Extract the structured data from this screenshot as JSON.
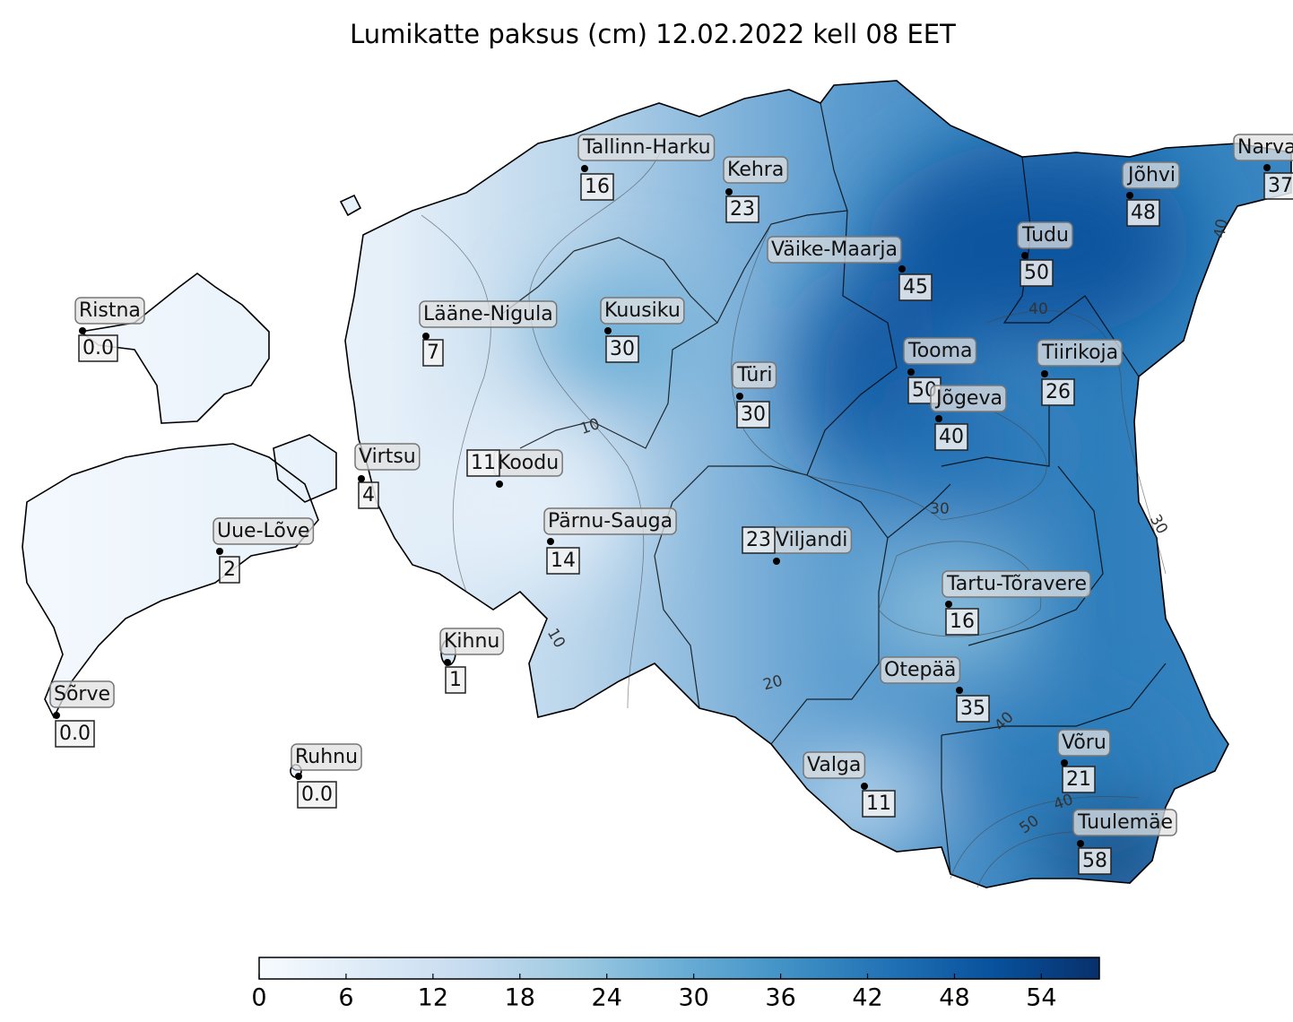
{
  "chart_data": {
    "type": "map",
    "title": "Lumikatte paksus (cm) 12.02.2022 kell 08 EET",
    "stations": [
      {
        "name": "Ristna",
        "value": 0,
        "value_label": "0.0"
      },
      {
        "name": "Tallinn-Harku",
        "value": 16
      },
      {
        "name": "Kehra",
        "value": 23
      },
      {
        "name": "Väike-Maarja",
        "value": 45
      },
      {
        "name": "Tudu",
        "value": 50
      },
      {
        "name": "Jõhvi",
        "value": 48
      },
      {
        "name": "Narva",
        "value": 37
      },
      {
        "name": "Lääne-Nigula",
        "value": 7
      },
      {
        "name": "Kuusiku",
        "value": 30
      },
      {
        "name": "Türi",
        "value": 30
      },
      {
        "name": "Tooma",
        "value": 50
      },
      {
        "name": "Tiirikoja",
        "value": 26
      },
      {
        "name": "Jõgeva",
        "value": 40
      },
      {
        "name": "Virtsu",
        "value": 4
      },
      {
        "name": "Koodu",
        "value": 11
      },
      {
        "name": "Uue-Lõve",
        "value": 2
      },
      {
        "name": "Pärnu-Sauga",
        "value": 14
      },
      {
        "name": "Viljandi",
        "value": 23
      },
      {
        "name": "Tartu-Tõravere",
        "value": 16
      },
      {
        "name": "Kihnu",
        "value": 1
      },
      {
        "name": "Otepää",
        "value": 35
      },
      {
        "name": "Sõrve",
        "value": 0,
        "value_label": "0.0"
      },
      {
        "name": "Ruhnu",
        "value": 0,
        "value_label": "0.0"
      },
      {
        "name": "Valga",
        "value": 11
      },
      {
        "name": "Võru",
        "value": 21
      },
      {
        "name": "Tuulemäe",
        "value": 58
      }
    ],
    "contour_labels": [
      10,
      10,
      20,
      30,
      30,
      40,
      40,
      40,
      40,
      50
    ],
    "colorbar": {
      "lim": [
        0,
        58
      ],
      "ticks": [
        0,
        6,
        12,
        18,
        24,
        30,
        36,
        42,
        48,
        54
      ]
    }
  }
}
